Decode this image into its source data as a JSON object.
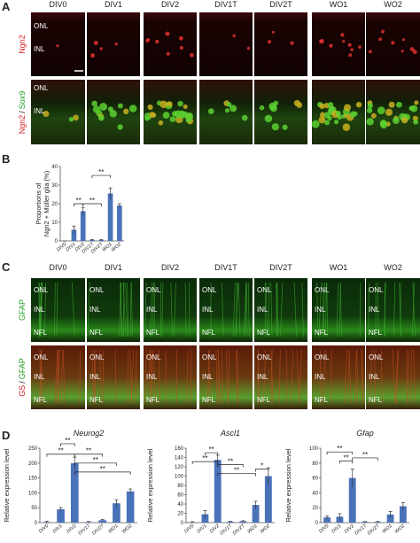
{
  "panel_a": {
    "label": "A",
    "columns": [
      "DIV0",
      "DIV1",
      "DIV2",
      "DIV1T",
      "DIV2T",
      "WO1",
      "WO2"
    ],
    "row1_label": "Ngn2",
    "row2_label": [
      "Ngn2",
      "/",
      "Sox9"
    ],
    "layer_labels": [
      "ONL",
      "INL"
    ]
  },
  "panel_b": {
    "label": "B"
  },
  "panel_c": {
    "label": "C",
    "columns": [
      "DIV0",
      "DIV1",
      "DIV2",
      "DIV1T",
      "DIV2T",
      "WO1",
      "WO2"
    ],
    "row1_label": "GFAP",
    "row2_label": [
      "GS",
      "/",
      "GFAP"
    ],
    "layer_labels": [
      "ONL",
      "INL",
      "NFL"
    ]
  },
  "panel_d": {
    "label": "D"
  },
  "chart_data": [
    {
      "type": "bar",
      "ylabel": [
        "Proportions of",
        "Ngn2 + Müller glia (%)"
      ],
      "categories": [
        "DIV0",
        "DIV1",
        "DIV2",
        "DIV1T",
        "DIV2T",
        "WO1",
        "WO2"
      ],
      "values": [
        0,
        6,
        16,
        0.5,
        0.5,
        25.5,
        19
      ],
      "errors": [
        0,
        2,
        2,
        0.3,
        0.3,
        3,
        1
      ],
      "color": "#4a72b8",
      "ylim": [
        0,
        40
      ],
      "yticks": [
        0,
        10,
        20,
        30,
        40
      ],
      "annotations": [
        "**",
        "**",
        "**"
      ]
    },
    {
      "type": "bar",
      "title": "Neurog2",
      "ylabel": [
        "Relative expression level"
      ],
      "categories": [
        "DIV0",
        "DIV1",
        "DIV2",
        "DIV1T",
        "DIV2T",
        "WO1",
        "WO2"
      ],
      "values": [
        2,
        45,
        200,
        2,
        8,
        65,
        105
      ],
      "errors": [
        3,
        6,
        20,
        2,
        3,
        12,
        8
      ],
      "color": "#4a72b8",
      "ylim": [
        0,
        250
      ],
      "yticks": [
        0,
        50,
        100,
        150,
        200,
        250
      ],
      "annotations": [
        "**",
        "**",
        "**",
        "**",
        "**"
      ]
    },
    {
      "type": "bar",
      "title": "Ascl1",
      "ylabel": [
        "Relative expression level"
      ],
      "categories": [
        "DIV0",
        "DIV1",
        "DIV2",
        "DIV1T",
        "DIV2T",
        "WO1",
        "WO2"
      ],
      "values": [
        1,
        18,
        135,
        2,
        3,
        38,
        100
      ],
      "errors": [
        1,
        8,
        10,
        1,
        1,
        8,
        18
      ],
      "color": "#4a72b8",
      "ylim": [
        0,
        160
      ],
      "yticks": [
        0,
        20,
        40,
        60,
        80,
        100,
        120,
        140,
        160
      ],
      "annotations": [
        "**",
        "**",
        "**",
        "**",
        "*"
      ]
    },
    {
      "type": "bar",
      "title": "Gfap",
      "ylabel": [
        "Relative expression level"
      ],
      "categories": [
        "DIV0",
        "DIV1",
        "DIV2",
        "DIV1T",
        "DIV2T",
        "WO1",
        "WO2"
      ],
      "values": [
        7,
        8,
        60,
        1,
        1,
        11,
        22
      ],
      "errors": [
        2,
        4,
        12,
        0.5,
        0.5,
        4,
        5
      ],
      "color": "#4a72b8",
      "ylim": [
        0,
        100
      ],
      "yticks": [
        0,
        20,
        40,
        60,
        80,
        100
      ],
      "annotations": [
        "**",
        "**",
        "**"
      ]
    }
  ]
}
